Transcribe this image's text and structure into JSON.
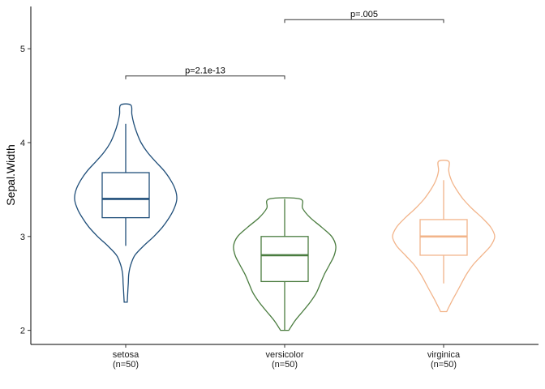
{
  "chart_data": {
    "type": "violin",
    "xlabel": "",
    "ylabel": "Sepal.Width",
    "ylim": [
      1.85,
      5.45
    ],
    "yticks": [
      2,
      3,
      4,
      5
    ],
    "grid": false,
    "legend": "none",
    "groups": [
      {
        "name": "setosa",
        "n_label": "(n=50)",
        "color": "#1f4e79",
        "min": 2.3,
        "max": 4.4,
        "q1": 3.2,
        "median": 3.4,
        "q3": 3.68,
        "whisker_low": 2.9,
        "whisker_high": 4.2,
        "density": [
          [
            2.3,
            0.03
          ],
          [
            2.4,
            0.04
          ],
          [
            2.5,
            0.05
          ],
          [
            2.6,
            0.06
          ],
          [
            2.7,
            0.1
          ],
          [
            2.8,
            0.18
          ],
          [
            2.9,
            0.35
          ],
          [
            3.0,
            0.55
          ],
          [
            3.1,
            0.72
          ],
          [
            3.2,
            0.85
          ],
          [
            3.3,
            0.95
          ],
          [
            3.4,
            1.0
          ],
          [
            3.5,
            0.97
          ],
          [
            3.6,
            0.88
          ],
          [
            3.7,
            0.75
          ],
          [
            3.8,
            0.58
          ],
          [
            3.9,
            0.42
          ],
          [
            4.0,
            0.3
          ],
          [
            4.1,
            0.22
          ],
          [
            4.2,
            0.16
          ],
          [
            4.3,
            0.12
          ],
          [
            4.4,
            0.1
          ]
        ]
      },
      {
        "name": "versicolor",
        "n_label": "(n=50)",
        "color": "#4a7c3f",
        "min": 2.0,
        "max": 3.4,
        "q1": 2.52,
        "median": 2.8,
        "q3": 3.0,
        "whisker_low": 2.0,
        "whisker_high": 3.4,
        "density": [
          [
            2.0,
            0.08
          ],
          [
            2.1,
            0.2
          ],
          [
            2.2,
            0.35
          ],
          [
            2.3,
            0.5
          ],
          [
            2.4,
            0.62
          ],
          [
            2.5,
            0.7
          ],
          [
            2.6,
            0.78
          ],
          [
            2.7,
            0.88
          ],
          [
            2.8,
            0.97
          ],
          [
            2.9,
            1.0
          ],
          [
            3.0,
            0.92
          ],
          [
            3.1,
            0.72
          ],
          [
            3.2,
            0.5
          ],
          [
            3.3,
            0.35
          ],
          [
            3.4,
            0.3
          ]
        ]
      },
      {
        "name": "virginica",
        "n_label": "(n=50)",
        "color": "#f2b48a",
        "min": 2.2,
        "max": 3.8,
        "q1": 2.8,
        "median": 3.0,
        "q3": 3.18,
        "whisker_low": 2.5,
        "whisker_high": 3.6,
        "density": [
          [
            2.2,
            0.06
          ],
          [
            2.3,
            0.15
          ],
          [
            2.4,
            0.25
          ],
          [
            2.5,
            0.35
          ],
          [
            2.6,
            0.45
          ],
          [
            2.7,
            0.58
          ],
          [
            2.8,
            0.75
          ],
          [
            2.9,
            0.92
          ],
          [
            3.0,
            1.0
          ],
          [
            3.1,
            0.92
          ],
          [
            3.2,
            0.75
          ],
          [
            3.3,
            0.55
          ],
          [
            3.4,
            0.38
          ],
          [
            3.5,
            0.25
          ],
          [
            3.6,
            0.15
          ],
          [
            3.7,
            0.1
          ],
          [
            3.8,
            0.1
          ]
        ]
      }
    ],
    "comparisons": [
      {
        "from": "setosa",
        "to": "versicolor",
        "label": "p=2.1e-13",
        "y": 4.71
      },
      {
        "from": "versicolor",
        "to": "virginica",
        "label": "p=.005",
        "y": 5.31
      }
    ]
  }
}
